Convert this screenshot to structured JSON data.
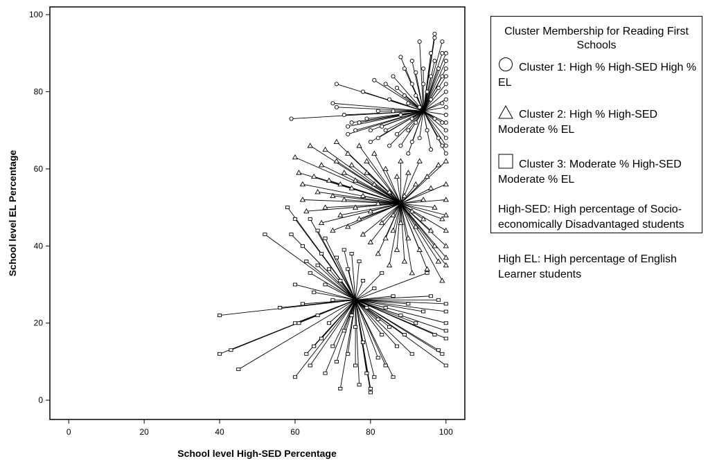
{
  "chart_data": {
    "type": "scatter",
    "xlabel": "School level High-SED Percentage",
    "ylabel": "School level EL Percentage",
    "xlim": [
      -5,
      105
    ],
    "ylim": [
      -5,
      102
    ],
    "xticks": [
      0,
      20,
      40,
      60,
      80,
      100
    ],
    "yticks": [
      0,
      20,
      40,
      60,
      80,
      100
    ],
    "grid": false,
    "legend_position": "right",
    "style": "cluster-centroid-spokes",
    "series": [
      {
        "marker": "circle",
        "centroid": [
          94,
          75
        ],
        "points": [
          [
            59,
            73
          ],
          [
            71,
            82
          ],
          [
            70,
            77
          ],
          [
            71,
            76
          ],
          [
            73,
            74
          ],
          [
            74,
            71
          ],
          [
            74,
            69
          ],
          [
            75,
            72
          ],
          [
            76,
            70
          ],
          [
            77,
            72
          ],
          [
            78,
            80
          ],
          [
            79,
            73
          ],
          [
            80,
            70
          ],
          [
            80,
            67
          ],
          [
            81,
            83
          ],
          [
            82,
            75
          ],
          [
            82,
            68
          ],
          [
            83,
            71
          ],
          [
            84,
            82
          ],
          [
            84,
            70
          ],
          [
            85,
            78
          ],
          [
            85,
            66
          ],
          [
            86,
            75
          ],
          [
            86,
            84
          ],
          [
            87,
            69
          ],
          [
            87,
            81
          ],
          [
            88,
            89
          ],
          [
            88,
            74
          ],
          [
            88,
            66
          ],
          [
            89,
            86
          ],
          [
            89,
            79
          ],
          [
            90,
            77
          ],
          [
            90,
            70
          ],
          [
            90,
            64
          ],
          [
            91,
            88
          ],
          [
            91,
            82
          ],
          [
            91,
            73
          ],
          [
            91,
            67
          ],
          [
            92,
            85
          ],
          [
            92,
            79
          ],
          [
            92,
            72
          ],
          [
            93,
            93
          ],
          [
            93,
            76
          ],
          [
            93,
            68
          ],
          [
            94,
            86
          ],
          [
            94,
            82
          ],
          [
            95,
            80
          ],
          [
            95,
            70
          ],
          [
            96,
            90
          ],
          [
            96,
            84
          ],
          [
            96,
            78
          ],
          [
            96,
            65
          ],
          [
            97,
            95
          ],
          [
            97,
            94
          ],
          [
            97,
            88
          ],
          [
            97,
            73
          ],
          [
            98,
            86
          ],
          [
            98,
            81
          ],
          [
            98,
            68
          ],
          [
            99,
            93
          ],
          [
            99,
            90
          ],
          [
            99,
            84
          ],
          [
            99,
            77
          ],
          [
            99,
            72
          ],
          [
            99,
            66
          ],
          [
            100,
            90
          ],
          [
            100,
            88
          ],
          [
            100,
            86
          ],
          [
            100,
            84
          ],
          [
            100,
            82
          ],
          [
            100,
            80
          ],
          [
            100,
            78
          ],
          [
            100,
            76
          ],
          [
            100,
            74
          ],
          [
            100,
            72
          ],
          [
            100,
            70
          ],
          [
            100,
            68
          ],
          [
            100,
            66
          ],
          [
            100,
            64
          ]
        ]
      },
      {
        "marker": "triangle",
        "centroid": [
          88,
          51
        ],
        "points": [
          [
            60,
            63
          ],
          [
            61,
            59
          ],
          [
            62,
            56
          ],
          [
            62,
            52
          ],
          [
            63,
            49
          ],
          [
            64,
            66
          ],
          [
            65,
            58
          ],
          [
            66,
            54
          ],
          [
            67,
            61
          ],
          [
            67,
            46
          ],
          [
            68,
            65
          ],
          [
            68,
            50
          ],
          [
            69,
            57
          ],
          [
            70,
            53
          ],
          [
            70,
            44
          ],
          [
            71,
            67
          ],
          [
            71,
            62
          ],
          [
            72,
            56
          ],
          [
            72,
            48
          ],
          [
            73,
            59
          ],
          [
            73,
            52
          ],
          [
            74,
            64
          ],
          [
            74,
            45
          ],
          [
            75,
            61
          ],
          [
            75,
            55
          ],
          [
            76,
            57
          ],
          [
            76,
            50
          ],
          [
            77,
            66
          ],
          [
            77,
            47
          ],
          [
            78,
            53
          ],
          [
            78,
            43
          ],
          [
            79,
            62
          ],
          [
            79,
            59
          ],
          [
            80,
            49
          ],
          [
            80,
            41
          ],
          [
            81,
            64
          ],
          [
            81,
            56
          ],
          [
            82,
            51
          ],
          [
            82,
            38
          ],
          [
            83,
            46
          ],
          [
            84,
            60
          ],
          [
            84,
            42
          ],
          [
            85,
            54
          ],
          [
            85,
            35
          ],
          [
            86,
            48
          ],
          [
            86,
            44
          ],
          [
            87,
            58
          ],
          [
            87,
            39
          ],
          [
            88,
            62
          ],
          [
            88,
            46
          ],
          [
            89,
            53
          ],
          [
            89,
            36
          ],
          [
            90,
            59
          ],
          [
            90,
            42
          ],
          [
            91,
            49
          ],
          [
            91,
            33
          ],
          [
            92,
            56
          ],
          [
            92,
            45
          ],
          [
            93,
            62
          ],
          [
            93,
            39
          ],
          [
            94,
            52
          ],
          [
            94,
            47
          ],
          [
            95,
            58
          ],
          [
            95,
            34
          ],
          [
            96,
            44
          ],
          [
            96,
            55
          ],
          [
            97,
            40
          ],
          [
            97,
            50
          ],
          [
            98,
            36
          ],
          [
            98,
            61
          ],
          [
            99,
            31
          ],
          [
            99,
            47
          ],
          [
            100,
            62
          ],
          [
            100,
            56
          ],
          [
            100,
            52
          ],
          [
            100,
            48
          ],
          [
            100,
            44
          ],
          [
            100,
            40
          ],
          [
            100,
            37
          ],
          [
            100,
            35
          ]
        ]
      },
      {
        "marker": "square",
        "centroid": [
          76,
          26
        ],
        "points": [
          [
            40,
            22
          ],
          [
            40,
            12
          ],
          [
            43,
            13
          ],
          [
            45,
            8
          ],
          [
            52,
            43
          ],
          [
            56,
            24
          ],
          [
            58,
            50
          ],
          [
            59,
            43
          ],
          [
            60,
            47
          ],
          [
            60,
            30
          ],
          [
            60,
            20
          ],
          [
            60,
            6
          ],
          [
            61,
            20
          ],
          [
            62,
            40
          ],
          [
            62,
            25
          ],
          [
            63,
            36
          ],
          [
            63,
            12
          ],
          [
            64,
            47
          ],
          [
            64,
            33
          ],
          [
            64,
            9
          ],
          [
            65,
            28
          ],
          [
            65,
            14
          ],
          [
            66,
            44
          ],
          [
            66,
            35
          ],
          [
            66,
            22
          ],
          [
            67,
            38
          ],
          [
            67,
            16
          ],
          [
            68,
            42
          ],
          [
            68,
            30
          ],
          [
            68,
            7
          ],
          [
            69,
            34
          ],
          [
            69,
            20
          ],
          [
            70,
            26
          ],
          [
            70,
            14
          ],
          [
            71,
            37
          ],
          [
            71,
            10
          ],
          [
            72,
            31
          ],
          [
            72,
            3
          ],
          [
            73,
            39
          ],
          [
            73,
            18
          ],
          [
            74,
            34
          ],
          [
            74,
            12
          ],
          [
            75,
            38
          ],
          [
            75,
            22
          ],
          [
            76,
            19
          ],
          [
            76,
            9
          ],
          [
            77,
            36
          ],
          [
            77,
            4
          ],
          [
            78,
            31
          ],
          [
            78,
            15
          ],
          [
            79,
            24
          ],
          [
            79,
            7
          ],
          [
            80,
            2
          ],
          [
            80,
            3
          ],
          [
            81,
            29
          ],
          [
            81,
            6
          ],
          [
            82,
            21
          ],
          [
            82,
            11
          ],
          [
            83,
            33
          ],
          [
            83,
            17
          ],
          [
            84,
            24
          ],
          [
            84,
            9
          ],
          [
            85,
            19
          ],
          [
            86,
            27
          ],
          [
            86,
            6
          ],
          [
            87,
            14
          ],
          [
            88,
            22
          ],
          [
            89,
            17
          ],
          [
            90,
            25
          ],
          [
            91,
            12
          ],
          [
            92,
            20
          ],
          [
            94,
            23
          ],
          [
            95,
            33
          ],
          [
            96,
            27
          ],
          [
            97,
            17
          ],
          [
            98,
            26
          ],
          [
            98,
            13
          ],
          [
            99,
            12
          ],
          [
            100,
            25
          ],
          [
            100,
            23
          ],
          [
            100,
            20
          ],
          [
            100,
            18
          ],
          [
            100,
            16
          ],
          [
            100,
            9
          ]
        ]
      }
    ]
  },
  "legend": {
    "title": "Cluster Membership for Reading First Schools",
    "entries": [
      {
        "symbol": "circle",
        "label": "Cluster 1: High % High-SED High % EL"
      },
      {
        "symbol": "triangle",
        "label": "Cluster 2: High % High-SED Moderate % EL"
      },
      {
        "symbol": "square",
        "label": "Cluster 3: Moderate % High-SED Moderate % EL"
      }
    ],
    "notes": [
      "High-SED: High percentage of Socio-economically Disadvantaged students",
      "High EL: High percentage of English Learner students"
    ]
  }
}
